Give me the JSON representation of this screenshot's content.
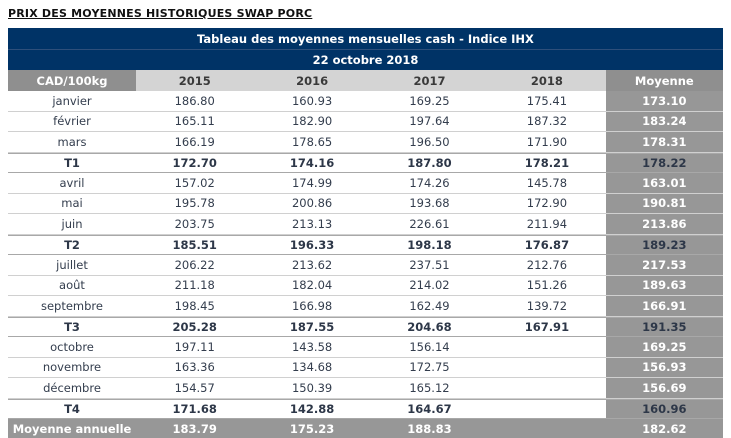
{
  "page_title": "PRIX DES MOYENNES HISTORIQUES SWAP PORC",
  "chart_data": {
    "type": "table",
    "title": "Tableau des moyennes mensuelles cash - Indice IHX",
    "date_label": "22 octobre 2018",
    "columns": [
      "CAD/100kg",
      "2015",
      "2016",
      "2017",
      "2018",
      "Moyenne"
    ],
    "rows": [
      {
        "label": "janvier",
        "type": "month",
        "values": [
          "186.80",
          "160.93",
          "169.25",
          "175.41",
          "173.10"
        ]
      },
      {
        "label": "février",
        "type": "month",
        "values": [
          "165.11",
          "182.90",
          "197.64",
          "187.32",
          "183.24"
        ]
      },
      {
        "label": "mars",
        "type": "month",
        "values": [
          "166.19",
          "178.65",
          "196.50",
          "171.90",
          "178.31"
        ]
      },
      {
        "label": "T1",
        "type": "quarter",
        "values": [
          "172.70",
          "174.16",
          "187.80",
          "178.21",
          "178.22"
        ]
      },
      {
        "label": "avril",
        "type": "month",
        "values": [
          "157.02",
          "174.99",
          "174.26",
          "145.78",
          "163.01"
        ]
      },
      {
        "label": "mai",
        "type": "month",
        "values": [
          "195.78",
          "200.86",
          "193.68",
          "172.90",
          "190.81"
        ]
      },
      {
        "label": "juin",
        "type": "month",
        "values": [
          "203.75",
          "213.13",
          "226.61",
          "211.94",
          "213.86"
        ]
      },
      {
        "label": "T2",
        "type": "quarter",
        "values": [
          "185.51",
          "196.33",
          "198.18",
          "176.87",
          "189.23"
        ]
      },
      {
        "label": "juillet",
        "type": "month",
        "values": [
          "206.22",
          "213.62",
          "237.51",
          "212.76",
          "217.53"
        ]
      },
      {
        "label": "août",
        "type": "month",
        "values": [
          "211.18",
          "182.04",
          "214.02",
          "151.26",
          "189.63"
        ]
      },
      {
        "label": "septembre",
        "type": "month",
        "values": [
          "198.45",
          "166.98",
          "162.49",
          "139.72",
          "166.91"
        ]
      },
      {
        "label": "T3",
        "type": "quarter",
        "values": [
          "205.28",
          "187.55",
          "204.68",
          "167.91",
          "191.35"
        ]
      },
      {
        "label": "octobre",
        "type": "month",
        "values": [
          "197.11",
          "143.58",
          "156.14",
          "",
          "169.25"
        ]
      },
      {
        "label": "novembre",
        "type": "month",
        "values": [
          "163.36",
          "134.68",
          "172.75",
          "",
          "156.93"
        ]
      },
      {
        "label": "décembre",
        "type": "month",
        "values": [
          "154.57",
          "150.39",
          "165.12",
          "",
          "156.69"
        ]
      },
      {
        "label": "T4",
        "type": "quarter",
        "values": [
          "171.68",
          "142.88",
          "164.67",
          "",
          "160.96"
        ]
      },
      {
        "label": "Moyenne annuelle",
        "type": "total",
        "values": [
          "183.79",
          "175.23",
          "188.83",
          "",
          "182.62"
        ]
      }
    ]
  },
  "colors": {
    "navy_header": "#003366",
    "gray_dark": "#8f8f8f",
    "gray_moyenne": "#979797",
    "gray_light": "#d4d4d4",
    "row_border": "#d0d0d0",
    "text_dark": "#333d4d",
    "white": "#ffffff"
  }
}
